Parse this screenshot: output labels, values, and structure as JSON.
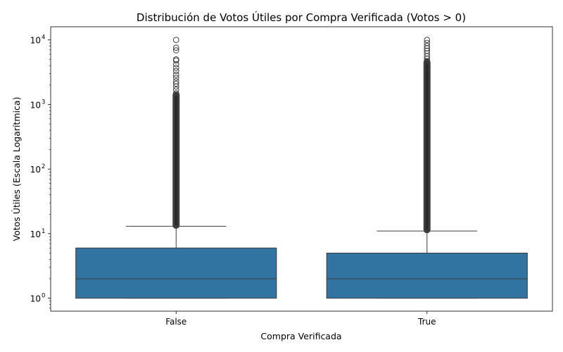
{
  "chart_data": {
    "type": "boxplot",
    "title": "Distribución de Votos Útiles por Compra Verificada (Votos > 0)",
    "xlabel": "Compra Verificada",
    "ylabel": "Votos Útiles (Escala Logarítmica)",
    "yscale": "log",
    "ylim": [
      0.63,
      16000
    ],
    "yticks": [
      1,
      10,
      100,
      1000,
      10000
    ],
    "ytick_labels": [
      {
        "base": "10",
        "exp": "0"
      },
      {
        "base": "10",
        "exp": "1"
      },
      {
        "base": "10",
        "exp": "2"
      },
      {
        "base": "10",
        "exp": "3"
      },
      {
        "base": "10",
        "exp": "4"
      }
    ],
    "categories": [
      "False",
      "True"
    ],
    "boxes": [
      {
        "category": "False",
        "min": 1,
        "q1": 1,
        "median": 2,
        "q3": 6,
        "whisker_high": 13,
        "outliers_range": [
          13.5,
          1400
        ],
        "outliers": [
          1500,
          1700,
          1900,
          2100,
          2300,
          2600,
          2900,
          3300,
          3700,
          4200,
          4800,
          5000,
          6900,
          7600,
          10000
        ]
      },
      {
        "category": "True",
        "min": 1,
        "q1": 1,
        "median": 2,
        "q3": 5,
        "whisker_high": 11,
        "outliers_range": [
          11.5,
          4500
        ],
        "outliers": [
          4700,
          5100,
          5600,
          6200,
          6800,
          7400,
          8100,
          9000,
          10000
        ]
      }
    ],
    "grid": false,
    "legend": "none",
    "colors": {
      "box_fill": "#3274a1",
      "line": "#3d3d3d",
      "frame": "#000000"
    }
  }
}
